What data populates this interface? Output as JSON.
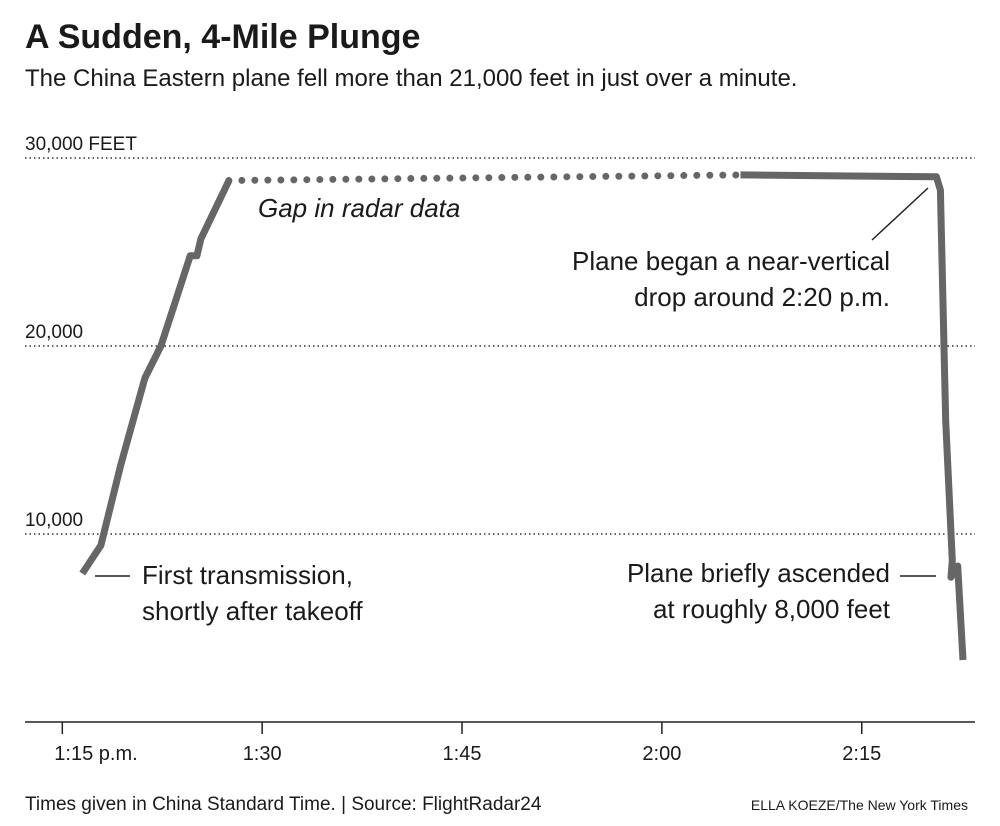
{
  "chart_data": {
    "type": "line",
    "title": "A Sudden, 4-Mile Plunge",
    "subtitle": "The China Eastern plane fell more than 21,000 feet in just over a minute.",
    "x": [
      796.5,
      797.9,
      799.4,
      801.2,
      802.4,
      804.6,
      805.1,
      805.4,
      807.5,
      null,
      845.9,
      860.6,
      860.9,
      861.3,
      861.8,
      861.7,
      862.2,
      862.6
    ],
    "series": [
      {
        "color": "#666666",
        "values": [
          7900,
          9400,
          13700,
          18300,
          20000,
          24800,
          24800,
          25700,
          28800,
          null,
          29100,
          29000,
          28300,
          16000,
          8600,
          7700,
          8300,
          3300
        ]
      }
    ],
    "xlim": [
      792.2,
      863.5
    ],
    "xticks": [
      {
        "value": 795,
        "label": "1:15 p.m."
      },
      {
        "value": 810,
        "label": "1:30"
      },
      {
        "value": 825,
        "label": "1:45"
      },
      {
        "value": 840,
        "label": "2:00"
      },
      {
        "value": 855,
        "label": "2:15"
      }
    ],
    "ylim": [
      0,
      30000
    ],
    "yticks": [
      {
        "value": 10000,
        "label": "10,000"
      },
      {
        "value": 20000,
        "label": "20,000"
      },
      {
        "value": 30000,
        "label": "30,000 FEET"
      }
    ],
    "grid": true,
    "annotations": {
      "gap": "Gap in radar data",
      "drop": [
        "Plane began a near-vertical",
        "drop around 2:20 p.m."
      ],
      "first": [
        "First transmission,",
        "shortly after takeoff"
      ],
      "ascend": [
        "Plane briefly ascended",
        "at roughly 8,000 feet"
      ]
    },
    "source": "Times given in China Standard Time. | Source: FlightRadar24",
    "credit": "ELLA KOEZE/The New York Times"
  }
}
